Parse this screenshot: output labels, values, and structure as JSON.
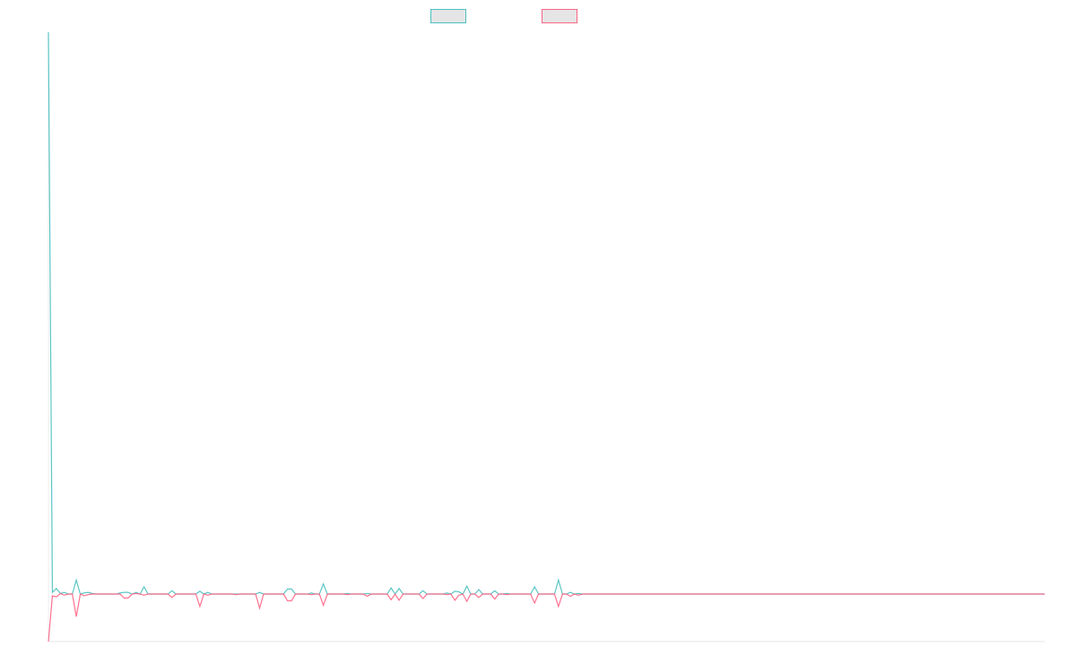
{
  "chart_data": {
    "type": "line",
    "title": "",
    "xlabel": "",
    "ylabel": "",
    "ylim": [
      -8.45,
      100
    ],
    "grid": false,
    "legend": "top",
    "x_count": 251,
    "series": [
      {
        "color": "#4bc0c0",
        "values": [
          100,
          0.3,
          1.0,
          0.1,
          0.3,
          0,
          0,
          2.5,
          0,
          0.2,
          0.3,
          0.1,
          0,
          0,
          0,
          0,
          0,
          0,
          0.2,
          0.3,
          0.3,
          0,
          0.3,
          0,
          1.3,
          0,
          0,
          0,
          0,
          0,
          0,
          0.6,
          0,
          0,
          0,
          0,
          0,
          0,
          0.5,
          0,
          0.3,
          0,
          0,
          0,
          0,
          0,
          0,
          0,
          0,
          0,
          0,
          0,
          0,
          0.3,
          0,
          0,
          0,
          0,
          0,
          0,
          0.9,
          0.9,
          0,
          0,
          0,
          0,
          0.2,
          0,
          0,
          1.8,
          0,
          0,
          0,
          0,
          0,
          0.1,
          0,
          0,
          0,
          0,
          0.1,
          0,
          0,
          0,
          0,
          0,
          1.1,
          0,
          1.0,
          0,
          0,
          0,
          0,
          0,
          0.6,
          0,
          0,
          0,
          0,
          0,
          0.2,
          0,
          0.5,
          0.4,
          0,
          1.4,
          0,
          0,
          0.8,
          0,
          0,
          0,
          0.6,
          0,
          0,
          0.1,
          0,
          0,
          0,
          0,
          0,
          0,
          1.3,
          0,
          0,
          0,
          0,
          0,
          2.5,
          0,
          0,
          0.3,
          0,
          0.1,
          0,
          0,
          0,
          0,
          0,
          0,
          0,
          0,
          0,
          0,
          0,
          0,
          0,
          0,
          0,
          0,
          0,
          0,
          0,
          0,
          0,
          0,
          0,
          0,
          0,
          0,
          0,
          0,
          0,
          0,
          0,
          0,
          0,
          0,
          0,
          0,
          0,
          0,
          0,
          0,
          0,
          0,
          0,
          0,
          0,
          0,
          0,
          0,
          0,
          0,
          0,
          0,
          0,
          0,
          0,
          0,
          0,
          0,
          0,
          0,
          0,
          0,
          0,
          0,
          0,
          0,
          0,
          0,
          0,
          0,
          0,
          0,
          0,
          0,
          0,
          0,
          0,
          0,
          0,
          0,
          0,
          0,
          0,
          0,
          0,
          0,
          0,
          0,
          0,
          0,
          0,
          0,
          0,
          0,
          0,
          0,
          0,
          0,
          0,
          0,
          0,
          0,
          0,
          0,
          0,
          0,
          0,
          0,
          0,
          0,
          0,
          0,
          0,
          0,
          0,
          0,
          0
        ]
      },
      {
        "color": "#ff6384",
        "values": [
          -8.45,
          -0.3,
          -0.5,
          0.1,
          -0.2,
          0,
          0,
          -4.0,
          0,
          -0.3,
          -0.1,
          0,
          0,
          0,
          0,
          0,
          0,
          0,
          0,
          -0.7,
          -0.7,
          0,
          0.1,
          0,
          -0.2,
          0,
          0,
          0,
          0,
          0,
          0,
          -0.6,
          0,
          0,
          0,
          0,
          0,
          0,
          -2.2,
          0,
          -0.2,
          0,
          0,
          0,
          0,
          0,
          0,
          -0.1,
          0,
          0,
          0,
          0,
          0,
          -2.5,
          0,
          0,
          0,
          0,
          0,
          0,
          -1.2,
          -1.2,
          0,
          0,
          0,
          0,
          -0.1,
          0,
          0,
          -2.0,
          0,
          0,
          0,
          0,
          0,
          -0.1,
          0,
          0,
          0,
          0,
          -0.4,
          0,
          0,
          0,
          0,
          0,
          -1.0,
          0,
          -1.1,
          0,
          0,
          0,
          0,
          0,
          -0.8,
          0,
          0,
          0,
          0,
          0,
          -0.1,
          0,
          -1.1,
          -0.2,
          0,
          -1.3,
          0,
          0,
          -0.6,
          0,
          0,
          0,
          -0.9,
          0,
          0,
          -0.1,
          0,
          0,
          0,
          0,
          0,
          0,
          -1.6,
          0,
          0,
          0,
          0,
          0,
          -2.2,
          0,
          0,
          -0.4,
          0,
          -0.2,
          0,
          0,
          0,
          0,
          0,
          0,
          0,
          0,
          0,
          0,
          0,
          0,
          0,
          0,
          0,
          0,
          0,
          0,
          0,
          0,
          0,
          0,
          0,
          0,
          0,
          0,
          0,
          0,
          0,
          0,
          0,
          0,
          0,
          0,
          0,
          0,
          0,
          0,
          0,
          0,
          0,
          0,
          0,
          0,
          0,
          0,
          0,
          0,
          0,
          0,
          0,
          0,
          0,
          0,
          0,
          0,
          0,
          0,
          0,
          0,
          0,
          0,
          0,
          0,
          0,
          0,
          0,
          0,
          0,
          0,
          0,
          0,
          0,
          0,
          0,
          0,
          0,
          0,
          0,
          0,
          0,
          0,
          0,
          0,
          0,
          0,
          0,
          0,
          0,
          0,
          0,
          0,
          0,
          0,
          0,
          0,
          0,
          0,
          0,
          0,
          0,
          0,
          0,
          0,
          0,
          0,
          0,
          0,
          0,
          0,
          0,
          0,
          0,
          0,
          0,
          0,
          0
        ]
      }
    ]
  }
}
